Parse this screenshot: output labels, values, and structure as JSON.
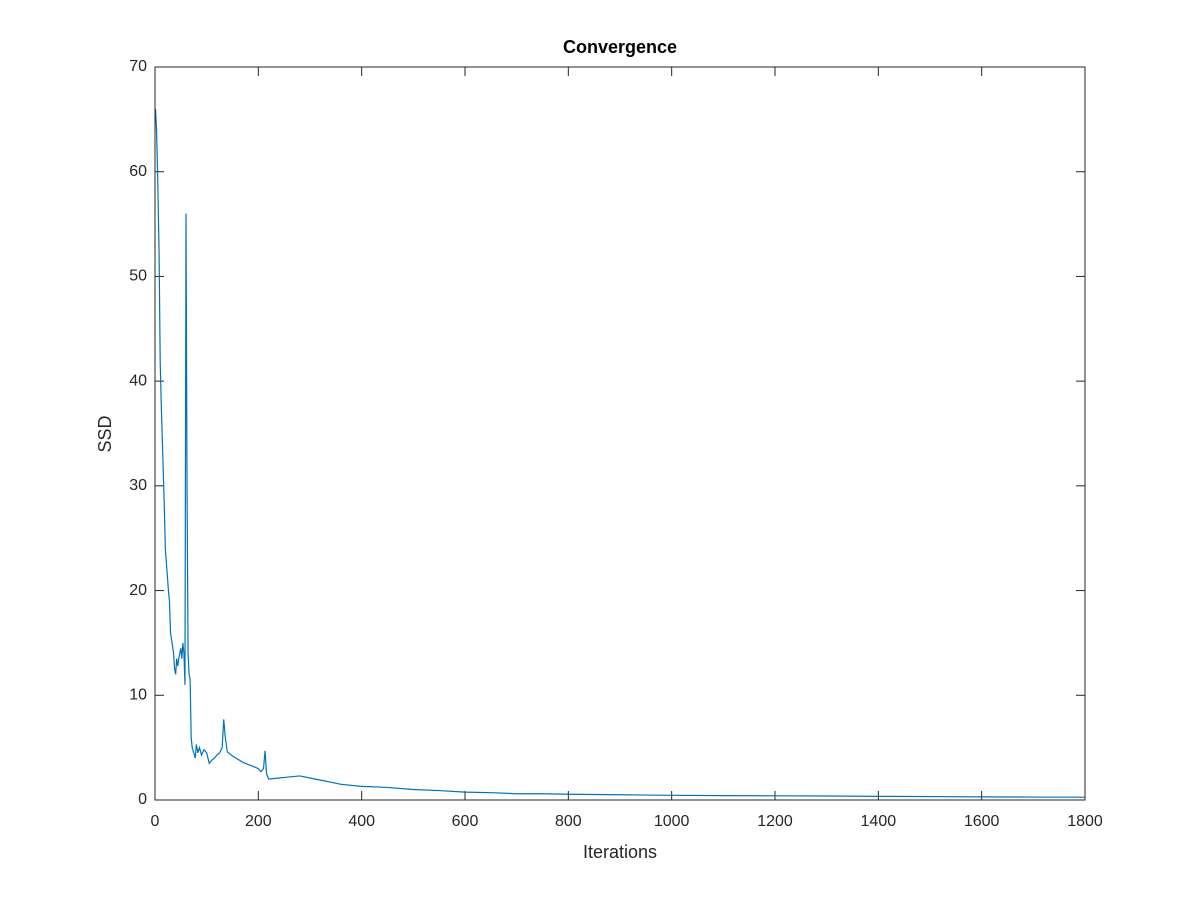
{
  "chart_data": {
    "type": "line",
    "title": "Convergence",
    "x_label": "Iterations",
    "y_label": "SSD",
    "x": [
      1,
      3,
      5,
      8,
      10,
      12,
      15,
      18,
      20,
      23,
      26,
      28,
      30,
      33,
      36,
      38,
      40,
      42,
      44,
      46,
      48,
      50,
      52,
      54,
      56,
      58,
      60,
      62,
      64,
      66,
      68,
      70,
      72,
      75,
      78,
      80,
      83,
      86,
      90,
      95,
      100,
      105,
      110,
      115,
      120,
      125,
      130,
      133,
      136,
      140,
      150,
      160,
      170,
      180,
      190,
      200,
      205,
      210,
      213,
      216,
      220,
      240,
      260,
      280,
      300,
      320,
      340,
      360,
      400,
      450,
      500,
      550,
      600,
      650,
      700,
      750,
      800,
      900,
      1000,
      1100,
      1200,
      1300,
      1400,
      1500,
      1600,
      1700,
      1800
    ],
    "values": [
      66,
      64,
      60,
      52,
      42,
      38,
      33,
      28,
      24,
      22,
      20,
      19,
      16,
      15,
      14,
      12.5,
      12,
      13.5,
      12.8,
      13.5,
      14,
      14.5,
      13.5,
      15,
      14,
      11,
      56,
      30,
      14,
      12,
      11.5,
      6,
      5,
      4.5,
      4,
      5.3,
      4.5,
      5,
      4.3,
      4.8,
      4.5,
      3.5,
      3.8,
      4,
      4.3,
      4.5,
      5,
      7.7,
      6,
      4.6,
      4.2,
      3.9,
      3.6,
      3.4,
      3.2,
      3,
      2.7,
      3,
      4.7,
      2.5,
      2,
      2.1,
      2.2,
      2.3,
      2.1,
      1.9,
      1.7,
      1.5,
      1.3,
      1.2,
      1,
      0.9,
      0.75,
      0.7,
      0.6,
      0.6,
      0.55,
      0.5,
      0.45,
      0.42,
      0.4,
      0.38,
      0.35,
      0.33,
      0.3,
      0.28,
      0.27
    ],
    "color": "#0072bd",
    "xlim": [
      0,
      1800
    ],
    "xticks": [
      0,
      200,
      400,
      600,
      800,
      1000,
      1200,
      1400,
      1600,
      1800
    ],
    "ylim": [
      0,
      70
    ],
    "yticks": [
      0,
      10,
      20,
      30,
      40,
      50,
      60,
      70
    ]
  }
}
